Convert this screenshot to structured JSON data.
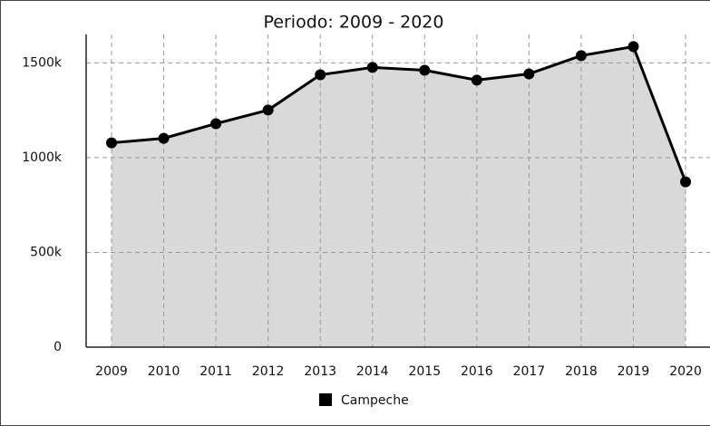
{
  "chart_data": {
    "type": "area",
    "title": "Periodo: 2009 - 2020",
    "categories": [
      "2009",
      "2010",
      "2011",
      "2012",
      "2013",
      "2014",
      "2015",
      "2016",
      "2017",
      "2018",
      "2019",
      "2020"
    ],
    "series": [
      {
        "name": "Campeche",
        "color": "#000000",
        "fill": "#d9d9d9",
        "values": [
          1078000,
          1102000,
          1179000,
          1251000,
          1437000,
          1476000,
          1461000,
          1409000,
          1442000,
          1538000,
          1586000,
          872000
        ]
      }
    ],
    "ylim": [
      0,
      1650000
    ],
    "yticks": [
      0,
      {
        "value": 500000,
        "label": "500k"
      },
      {
        "value": 1000000,
        "label": "1000k"
      },
      {
        "value": 1500000,
        "label": "1500k"
      }
    ],
    "grid": true,
    "legend": "bottom"
  }
}
